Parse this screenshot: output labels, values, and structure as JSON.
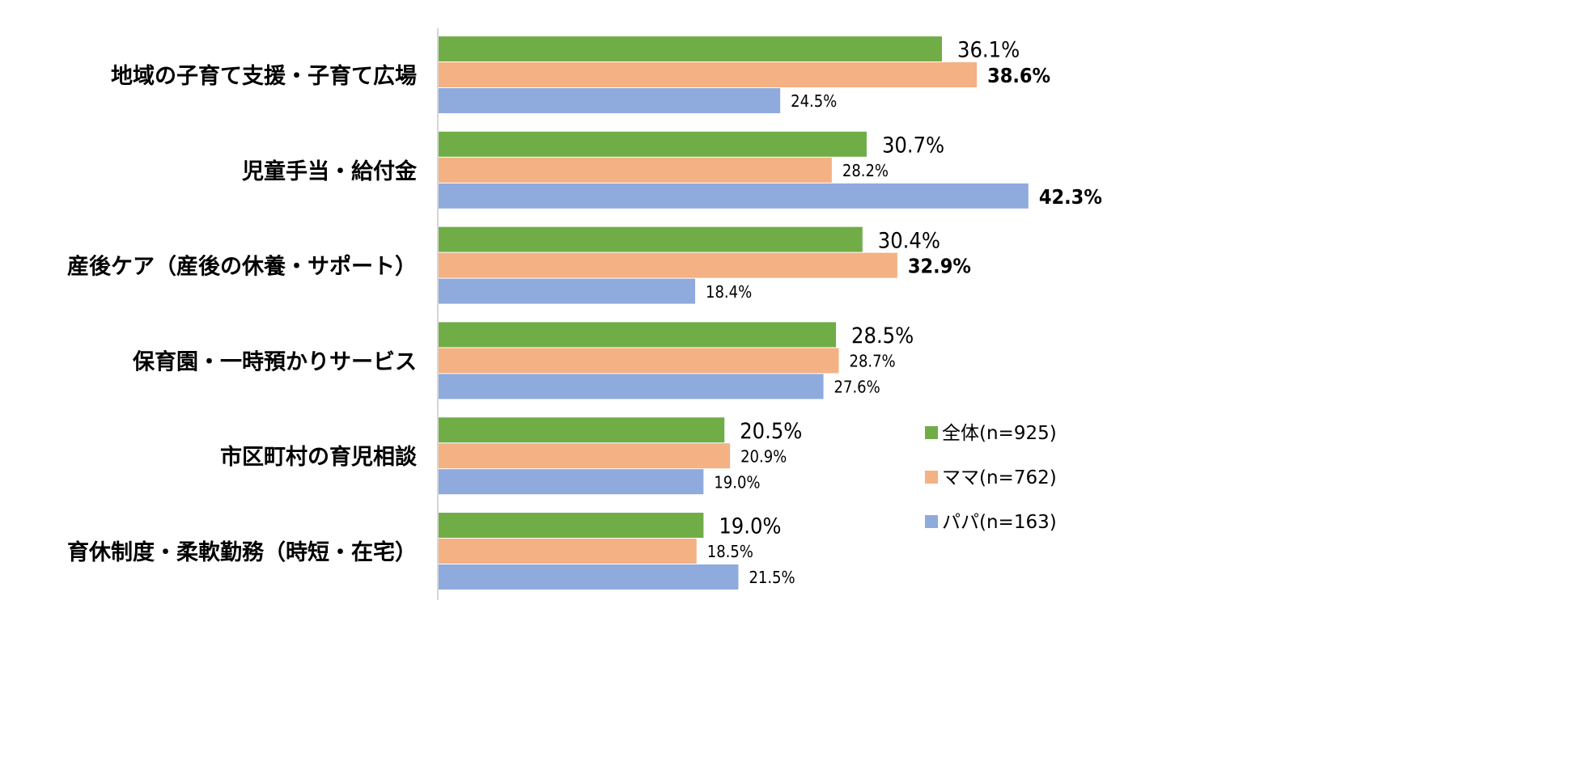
{
  "chart_data": {
    "type": "bar",
    "orientation": "horizontal",
    "categories": [
      "地域の子育て支援・子育て広場",
      "児童手当・給付金",
      "産後ケア（産後の休養・サポート）",
      "保育園・一時預かりサービス",
      "市区町村の育児相談",
      "育休制度・柔軟勤務（時短・在宅）"
    ],
    "series": [
      {
        "name": "全体(n=925)",
        "color": "#70AD47",
        "values": [
          36.1,
          30.7,
          30.4,
          28.5,
          20.5,
          19.0
        ]
      },
      {
        "name": "ママ(n=762)",
        "color": "#F4B183",
        "values": [
          38.6,
          28.2,
          32.9,
          28.7,
          20.9,
          18.5
        ]
      },
      {
        "name": "パパ(n=163)",
        "color": "#8FAADC",
        "values": [
          24.5,
          42.3,
          18.4,
          27.6,
          19.0,
          21.5
        ]
      }
    ],
    "labels": [
      [
        "36.1%",
        "30.7%",
        "30.4%",
        "28.5%",
        "20.5%",
        "19.0%"
      ],
      [
        "38.6%",
        "28.2%",
        "32.9%",
        "28.7%",
        "20.9%",
        "18.5%"
      ],
      [
        "24.5%",
        "42.3%",
        "18.4%",
        "27.6%",
        "19.0%",
        "21.5%"
      ]
    ],
    "highlight_color": "#E00000",
    "highlighted": [
      [
        1,
        0
      ],
      [
        2,
        1
      ]
    ],
    "bold": [
      [
        1,
        2
      ]
    ],
    "xlim": [
      0,
      45
    ],
    "grid": false,
    "legend": "right"
  }
}
